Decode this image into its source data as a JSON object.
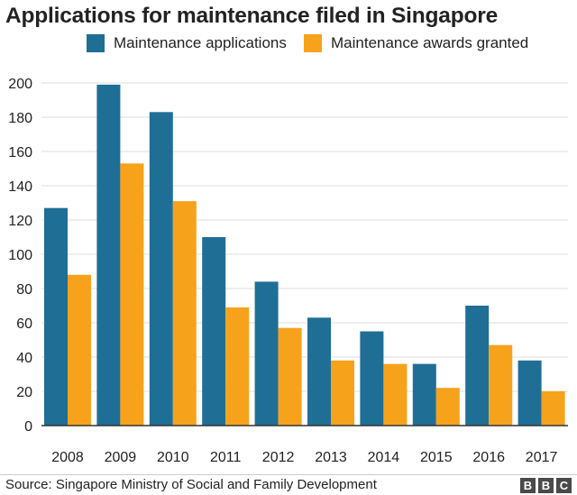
{
  "chart_data": {
    "type": "bar",
    "title": "Applications for maintenance filed in Singapore",
    "categories": [
      "2008",
      "2009",
      "2010",
      "2011",
      "2012",
      "2013",
      "2014",
      "2015",
      "2016",
      "2017"
    ],
    "series": [
      {
        "name": "Maintenance applications",
        "color": "#1f6e96",
        "values": [
          127,
          199,
          183,
          110,
          84,
          63,
          55,
          36,
          70,
          38
        ]
      },
      {
        "name": "Maintenance awards granted",
        "color": "#f7a21b",
        "values": [
          88,
          153,
          131,
          69,
          57,
          38,
          36,
          22,
          47,
          20
        ]
      }
    ],
    "ylim": [
      0,
      200
    ],
    "yticks": [
      "0",
      "20",
      "40",
      "60",
      "80",
      "100",
      "120",
      "140",
      "160",
      "180",
      "200"
    ],
    "grid": true,
    "legend": "top-center",
    "xlabel": "",
    "ylabel": ""
  },
  "source": "Source:  Singapore Ministry of Social and Family Development",
  "brand": [
    "B",
    "B",
    "C"
  ]
}
